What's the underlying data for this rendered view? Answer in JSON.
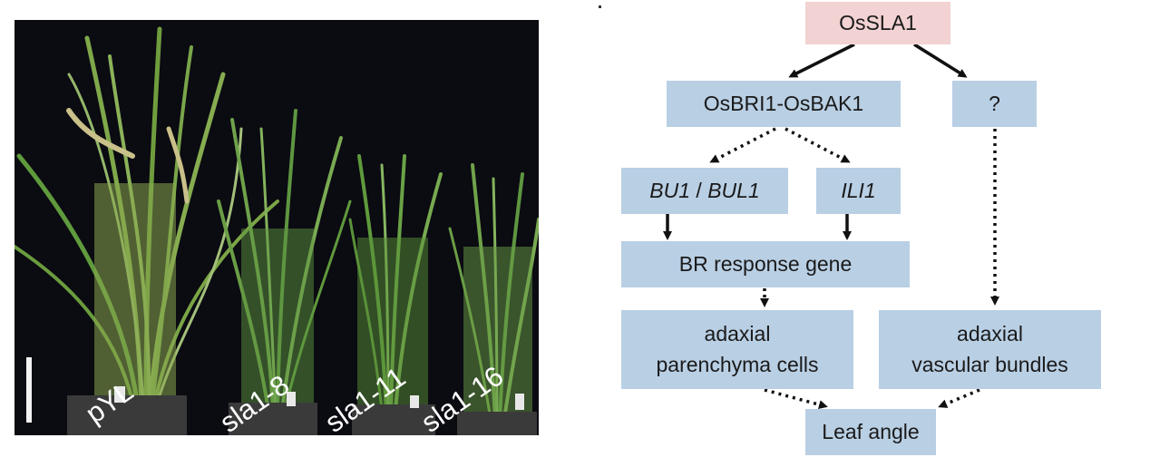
{
  "photo": {
    "plant_labels": [
      "pYL",
      "sla1-8",
      "sla1-11",
      "sla1-16"
    ],
    "colors": {
      "background": "#0b0b12",
      "leaf": "#5f9a3c",
      "pot": "#3a3a3a",
      "scale_bar": "#f2f2f2"
    }
  },
  "diagram": {
    "nodes": {
      "root": "OsSLA1",
      "receptor": "OsBRI1-OsBAK1",
      "unknown": "?",
      "bu1_a": "BU1",
      "bu1_sep": " / ",
      "bu1_b": "BUL1",
      "ili1": "ILI1",
      "br_response": "BR response gene",
      "parenchyma_l1": "adaxial",
      "parenchyma_l2": "parenchyma cells",
      "vascular_l1": "adaxial",
      "vascular_l2": "vascular bundles",
      "leaf_angle": "Leaf angle"
    },
    "colors": {
      "node_fill": "#b9cfe4",
      "root_fill": "#f2d2d2",
      "arrow": "#111111"
    },
    "edges": [
      {
        "from": "root",
        "to": "receptor",
        "style": "solid"
      },
      {
        "from": "root",
        "to": "unknown",
        "style": "solid"
      },
      {
        "from": "receptor",
        "to": "bu1",
        "style": "dotted"
      },
      {
        "from": "receptor",
        "to": "ili1",
        "style": "dotted"
      },
      {
        "from": "bu1",
        "to": "br_response",
        "style": "solid"
      },
      {
        "from": "ili1",
        "to": "br_response",
        "style": "solid"
      },
      {
        "from": "br_response",
        "to": "parenchyma",
        "style": "dotted"
      },
      {
        "from": "unknown",
        "to": "vascular",
        "style": "dotted"
      },
      {
        "from": "parenchyma",
        "to": "leaf_angle",
        "style": "dotted"
      },
      {
        "from": "vascular",
        "to": "leaf_angle",
        "style": "dotted"
      }
    ]
  }
}
